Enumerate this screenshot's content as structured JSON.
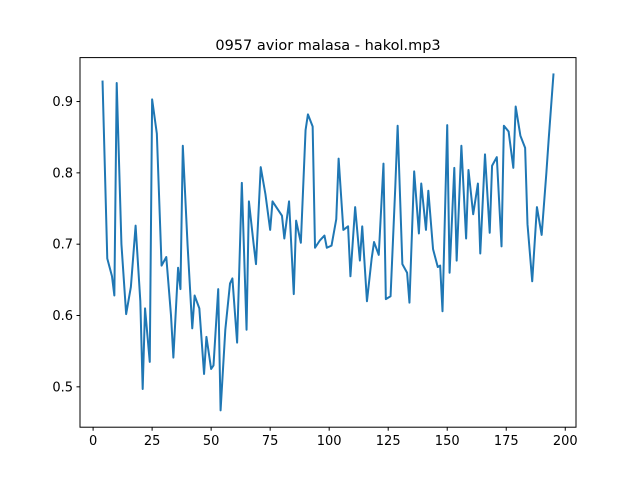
{
  "chart_data": {
    "type": "line",
    "title": "0957 avior malasa - hakol.mp3",
    "x": [
      4,
      6,
      8,
      9,
      10,
      12,
      14,
      16,
      18,
      20,
      21,
      22,
      24,
      25,
      27,
      29,
      31,
      33,
      34,
      36,
      37,
      38,
      40,
      42,
      43,
      45,
      47,
      48,
      50,
      51,
      53,
      54,
      56,
      58,
      59,
      61,
      63,
      65,
      66,
      68,
      69,
      71,
      73,
      75,
      76,
      78,
      80,
      81,
      83,
      85,
      86,
      88,
      90,
      91,
      93,
      94,
      96,
      98,
      99,
      101,
      103,
      104,
      106,
      108,
      109,
      111,
      113,
      114,
      116,
      118,
      119,
      121,
      123,
      124,
      126,
      128,
      129,
      131,
      133,
      134,
      136,
      138,
      139,
      141,
      142,
      144,
      146,
      147,
      148,
      150,
      151,
      153,
      154,
      156,
      158,
      159,
      161,
      163,
      164,
      166,
      168,
      169,
      171,
      173,
      174,
      176,
      178,
      179,
      181,
      183,
      184,
      186,
      188,
      190,
      192,
      193,
      195
    ],
    "values": [
      0.928,
      0.68,
      0.655,
      0.628,
      0.926,
      0.7,
      0.602,
      0.64,
      0.726,
      0.62,
      0.497,
      0.61,
      0.535,
      0.903,
      0.855,
      0.67,
      0.682,
      0.6,
      0.541,
      0.667,
      0.637,
      0.838,
      0.7,
      0.582,
      0.628,
      0.61,
      0.518,
      0.57,
      0.525,
      0.53,
      0.637,
      0.467,
      0.58,
      0.645,
      0.652,
      0.562,
      0.786,
      0.58,
      0.76,
      0.7,
      0.672,
      0.808,
      0.77,
      0.72,
      0.76,
      0.75,
      0.74,
      0.708,
      0.76,
      0.63,
      0.733,
      0.702,
      0.86,
      0.882,
      0.865,
      0.695,
      0.705,
      0.712,
      0.695,
      0.698,
      0.735,
      0.82,
      0.72,
      0.725,
      0.655,
      0.752,
      0.677,
      0.725,
      0.62,
      0.68,
      0.703,
      0.685,
      0.813,
      0.623,
      0.627,
      0.78,
      0.866,
      0.672,
      0.66,
      0.618,
      0.802,
      0.715,
      0.785,
      0.72,
      0.775,
      0.693,
      0.668,
      0.67,
      0.606,
      0.867,
      0.66,
      0.807,
      0.677,
      0.838,
      0.708,
      0.804,
      0.742,
      0.785,
      0.687,
      0.826,
      0.716,
      0.81,
      0.822,
      0.697,
      0.866,
      0.858,
      0.807,
      0.893,
      0.852,
      0.835,
      0.728,
      0.648,
      0.752,
      0.713,
      0.8,
      0.848,
      0.938
    ],
    "color": "#1f77b4",
    "xlim": [
      -5.55,
      204.55
    ],
    "xticks": [
      0,
      25,
      50,
      75,
      100,
      125,
      150,
      175,
      200
    ],
    "ylim": [
      0.4434,
      0.9616
    ],
    "yticks": [
      0.5,
      0.6,
      0.7,
      0.8,
      0.9
    ]
  }
}
